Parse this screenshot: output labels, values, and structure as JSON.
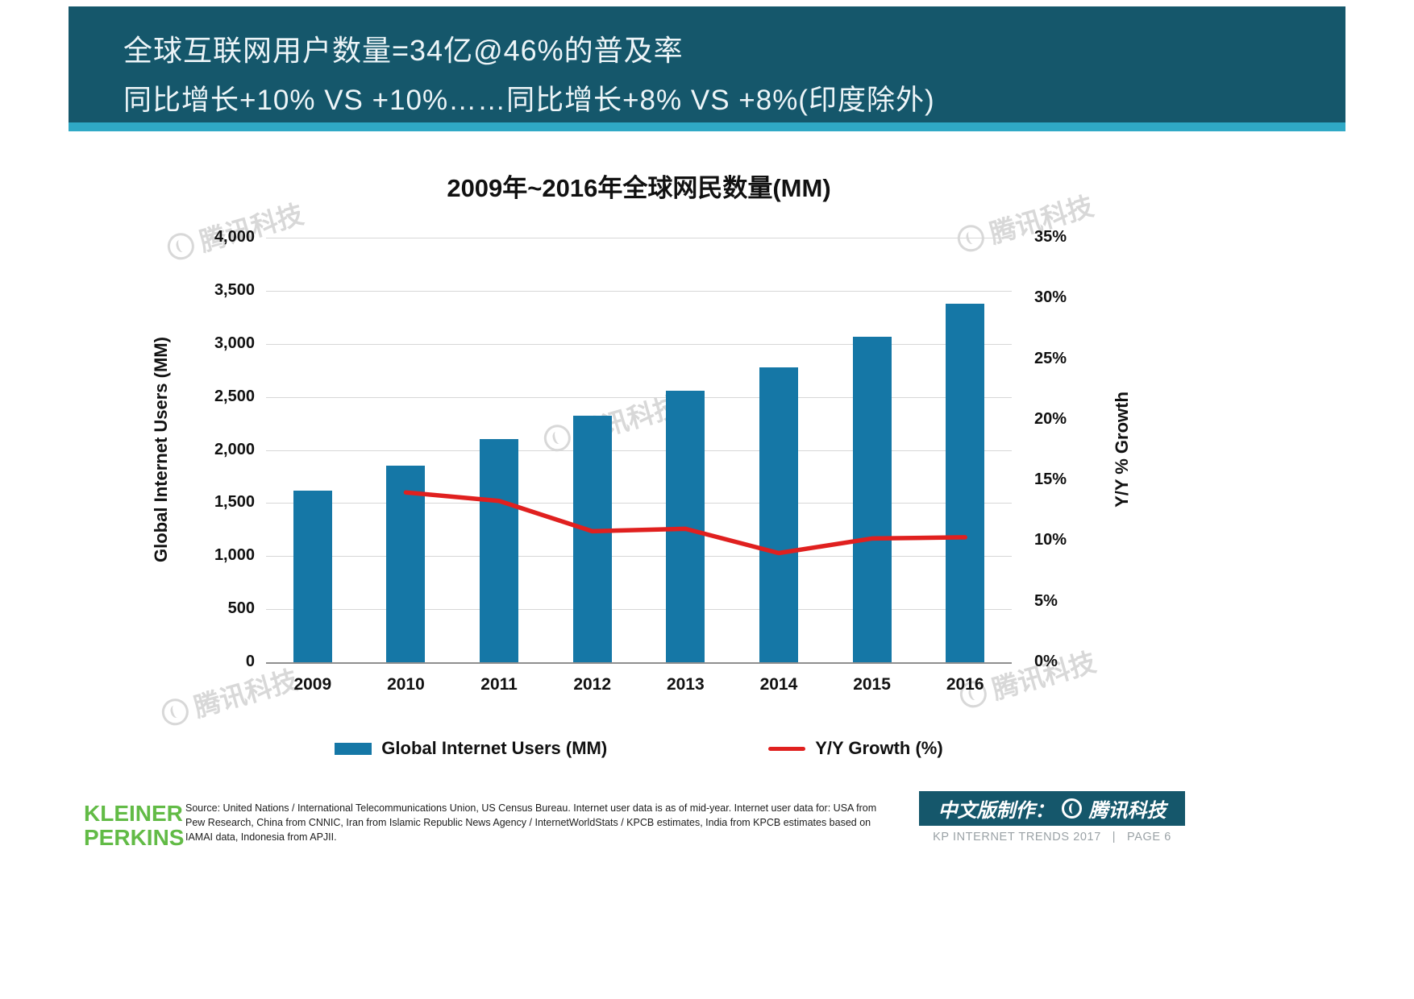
{
  "header": {
    "title_line1": "全球互联网用户数量=34亿@46%的普及率",
    "title_line2": "同比增长+10% VS +10%……同比增长+8% VS +8%(印度除外)"
  },
  "chart_data": {
    "type": "bar",
    "title": "2009年~2016年全球网民数量(MM)",
    "categories": [
      "2009",
      "2010",
      "2011",
      "2012",
      "2013",
      "2014",
      "2015",
      "2016"
    ],
    "series": [
      {
        "name": "Global Internet Users (MM)",
        "type": "bar",
        "axis": "left",
        "values": [
          1620,
          1850,
          2100,
          2320,
          2560,
          2780,
          3070,
          3380
        ]
      },
      {
        "name": "Y/Y Growth (%)",
        "type": "line",
        "axis": "right",
        "values": [
          null,
          14,
          13.3,
          10.8,
          11,
          9,
          10.2,
          10.3
        ]
      }
    ],
    "left_axis": {
      "label": "Global Internet Users (MM)",
      "min": 0,
      "max": 4000,
      "tick_step": 500,
      "tick_labels": [
        "0",
        "500",
        "1,000",
        "1,500",
        "2,000",
        "2,500",
        "3,000",
        "3,500",
        "4,000"
      ]
    },
    "right_axis": {
      "label": "Y/Y % Growth",
      "min": 0,
      "max": 35,
      "tick_step": 5,
      "tick_labels": [
        "0%",
        "5%",
        "10%",
        "15%",
        "20%",
        "25%",
        "30%",
        "35%"
      ]
    },
    "grid": true,
    "legend_position": "bottom",
    "colors": {
      "bar": "#1577a6",
      "line": "#e0201f"
    }
  },
  "footer": {
    "logo_line1": "KLEINER",
    "logo_line2": "PERKINS",
    "source_text": "Source: United Nations / International Telecommunications Union, US Census Bureau. Internet user data is as of mid-year. Internet user data for: USA from Pew Research, China from CNNIC, Iran from Islamic Republic News Agency / InternetWorldStats / KPCB estimates, India from KPCB estimates based on IAMAI data, Indonesia from APJII.",
    "credit_label": "中文版制作：",
    "credit_brand": "腾讯科技",
    "page_info": "KP INTERNET TRENDS 2017   |   PAGE 6"
  },
  "watermark": {
    "text": "腾讯科技"
  }
}
